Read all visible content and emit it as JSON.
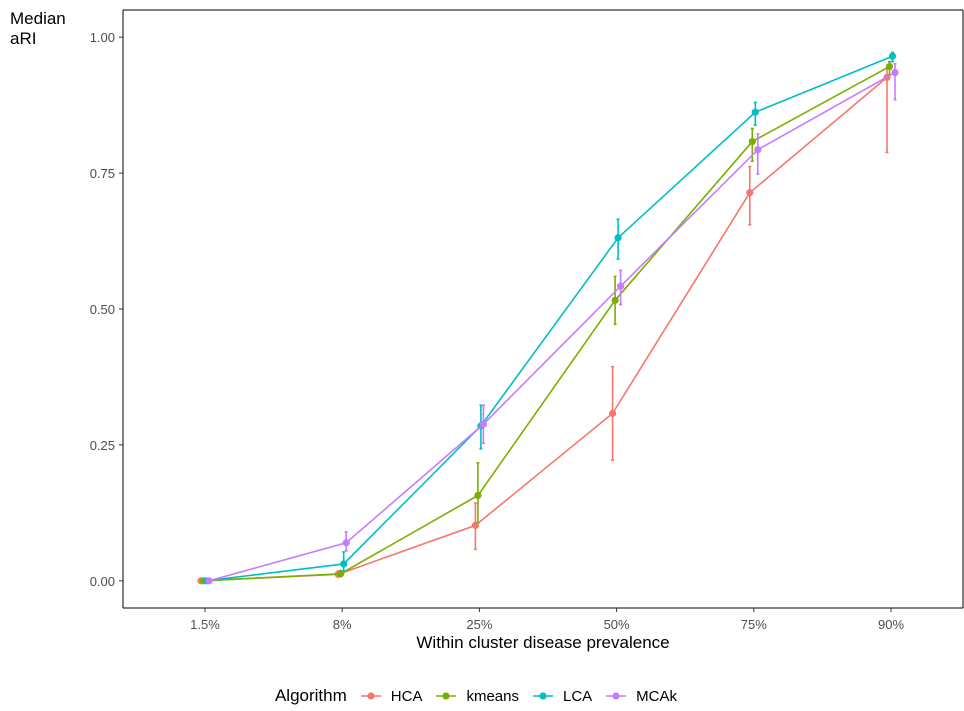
{
  "chart_data": {
    "type": "line",
    "ylabel": "Median\naRI",
    "xlabel": "Within cluster disease prevalence",
    "categories": [
      "1.5%",
      "8%",
      "25%",
      "50%",
      "75%",
      "90%"
    ],
    "ylim": [
      -0.05,
      1.05
    ],
    "yticks": [
      0.0,
      0.25,
      0.5,
      0.75,
      1.0
    ],
    "ytick_labels": [
      "0.00",
      "0.25",
      "0.50",
      "0.75",
      "1.00"
    ],
    "legend_title": "Algorithm",
    "legend_position": "bottom",
    "series": [
      {
        "name": "HCA",
        "color": "#F8766D",
        "values": [
          0.0,
          0.012,
          0.102,
          0.308,
          0.714,
          0.926
        ],
        "lower": [
          0.0,
          0.007,
          0.058,
          0.222,
          0.655,
          0.788
        ],
        "upper": [
          0.001,
          0.018,
          0.143,
          0.394,
          0.762,
          0.943
        ]
      },
      {
        "name": "kmeans",
        "color": "#7CAE00",
        "values": [
          0.0,
          0.013,
          0.157,
          0.516,
          0.808,
          0.946
        ],
        "lower": [
          0.0,
          0.008,
          0.107,
          0.472,
          0.772,
          0.931
        ],
        "upper": [
          0.001,
          0.019,
          0.217,
          0.56,
          0.832,
          0.955
        ]
      },
      {
        "name": "LCA",
        "color": "#00BFC4",
        "values": [
          0.0,
          0.031,
          0.285,
          0.631,
          0.862,
          0.965
        ],
        "lower": [
          0.0,
          0.018,
          0.243,
          0.592,
          0.838,
          0.955
        ],
        "upper": [
          0.001,
          0.053,
          0.323,
          0.665,
          0.88,
          0.972
        ]
      },
      {
        "name": "MCAk",
        "color": "#C77CFF",
        "values": [
          0.0,
          0.07,
          0.288,
          0.542,
          0.793,
          0.935
        ],
        "lower": [
          0.0,
          0.055,
          0.253,
          0.508,
          0.748,
          0.885
        ],
        "upper": [
          0.001,
          0.09,
          0.323,
          0.571,
          0.822,
          0.951
        ]
      }
    ]
  }
}
